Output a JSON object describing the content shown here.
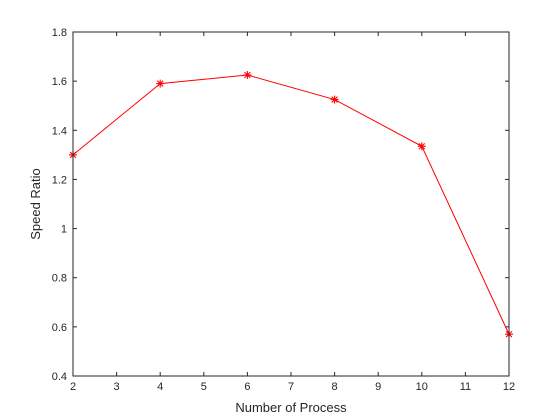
{
  "chart_data": {
    "type": "line",
    "xlabel": "Number of Process",
    "ylabel": "Speed Ratio",
    "xlim": [
      2,
      12
    ],
    "ylim": [
      0.4,
      1.8
    ],
    "xticks": [
      2,
      3,
      4,
      5,
      6,
      7,
      8,
      9,
      10,
      11,
      12
    ],
    "yticks": [
      0.4,
      0.6,
      0.8,
      1,
      1.2,
      1.4,
      1.6,
      1.8
    ],
    "xtick_labels": [
      "2",
      "3",
      "4",
      "5",
      "6",
      "7",
      "8",
      "9",
      "10",
      "11",
      "12"
    ],
    "ytick_labels": [
      "0.4",
      "0.6",
      "0.8",
      "1",
      "1.2",
      "1.4",
      "1.6",
      "1.8"
    ],
    "grid": false,
    "series": [
      {
        "x": [
          2,
          4,
          6,
          8,
          10,
          12
        ],
        "values": [
          1.3,
          1.59,
          1.625,
          1.525,
          1.335,
          0.57
        ],
        "color": "#ff0000",
        "marker": "asterisk"
      }
    ]
  }
}
